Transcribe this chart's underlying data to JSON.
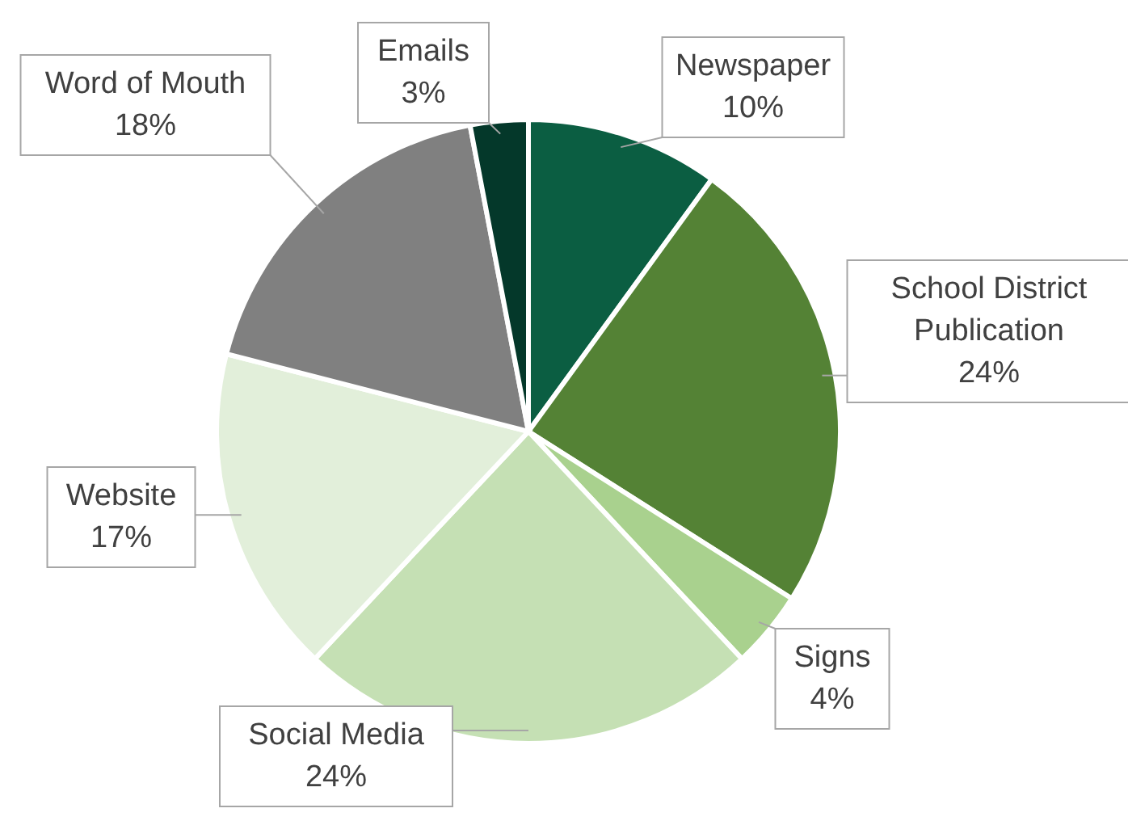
{
  "chart_data": {
    "type": "pie",
    "categories": [
      "Newspaper",
      "School District Publication",
      "Signs",
      "Social Media",
      "Website",
      "Word of Mouth",
      "Emails"
    ],
    "values": [
      10,
      24,
      4,
      24,
      17,
      18,
      3
    ],
    "value_labels": [
      "10%",
      "24%",
      "4%",
      "24%",
      "17%",
      "18%",
      "3%"
    ],
    "colors": [
      "#0b5e42",
      "#548235",
      "#a9d18e",
      "#c5e0b4",
      "#e2efda",
      "#808080",
      "#04382a"
    ],
    "legend": false
  }
}
